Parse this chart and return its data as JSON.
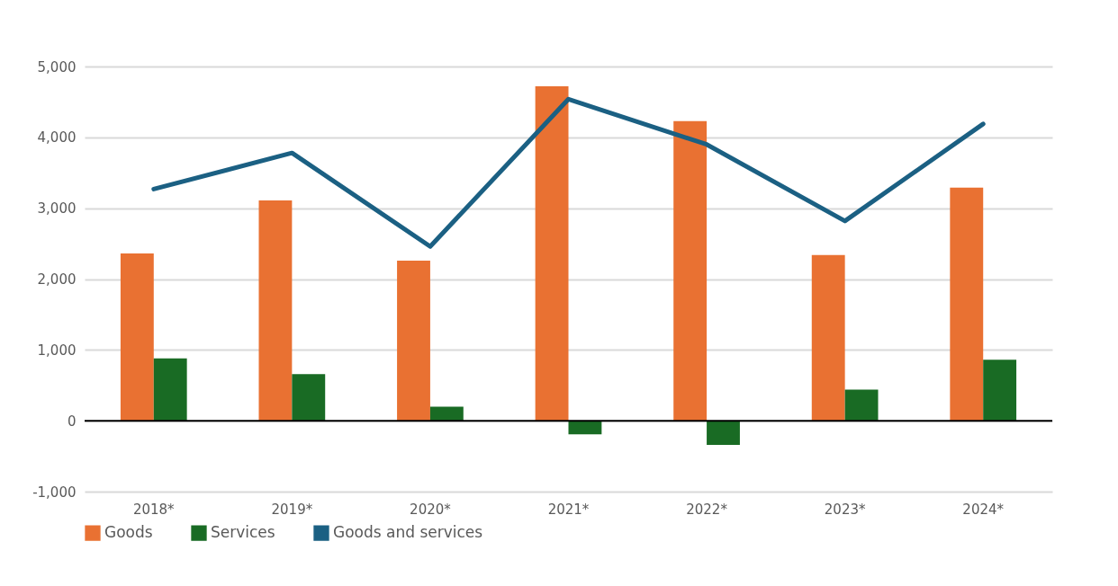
{
  "chart_data": {
    "type": "bar",
    "categories": [
      "2018*",
      "2019*",
      "2020*",
      "2021*",
      "2022*",
      "2023*",
      "2024*"
    ],
    "series": [
      {
        "name": "Goods",
        "color": "#e97132",
        "values": [
          2360,
          3110,
          2260,
          4720,
          4230,
          2340,
          3290
        ]
      },
      {
        "name": "Services",
        "color": "#196b24",
        "values": [
          880,
          660,
          200,
          -190,
          -340,
          440,
          860
        ]
      },
      {
        "name": "Goods and services",
        "type": "line",
        "color": "#1b6083",
        "values": [
          3270,
          3780,
          2460,
          4540,
          3900,
          2820,
          4190
        ]
      }
    ],
    "ylim": [
      -1000,
      5000
    ],
    "yticks": [
      {
        "value": -1000,
        "label": "-1,000"
      },
      0,
      {
        "value": 1000,
        "label": "1,000"
      },
      {
        "value": 2000,
        "label": "2,000"
      },
      {
        "value": 3000,
        "label": "3,000"
      },
      {
        "value": 4000,
        "label": "4,000"
      },
      {
        "value": 5000,
        "label": "5,000"
      }
    ],
    "ref_lines": [
      {
        "axis": "y",
        "value": 0,
        "color": "#000000"
      }
    ],
    "grid": "y",
    "legend": "bottom"
  }
}
